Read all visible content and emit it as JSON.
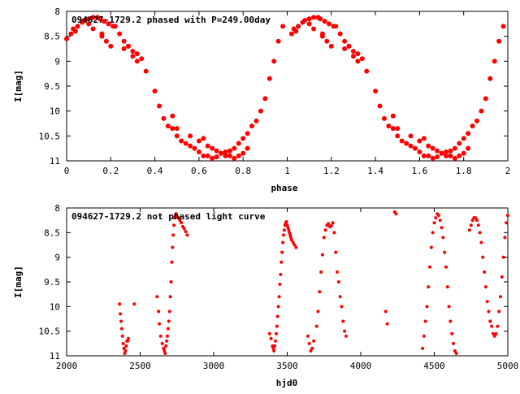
{
  "chart_data": [
    {
      "type": "scatter",
      "title": "094627-1729.2 phased with P=249.00day",
      "xlabel": "phase",
      "ylabel": "I[mag]",
      "xlim": [
        0,
        2
      ],
      "ylim": [
        11,
        8
      ],
      "y_reversed": true,
      "xticks": [
        0,
        0.2,
        0.4,
        0.6,
        0.8,
        1,
        1.2,
        1.4,
        1.6,
        1.8,
        2
      ],
      "xtick_labels": [
        "0",
        "0.2",
        "0.4",
        "0.6",
        "0.8",
        "1",
        "1.2",
        "1.4",
        "1.6",
        "1.8",
        "2"
      ],
      "yticks": [
        8,
        8.5,
        9,
        9.5,
        10,
        10.5,
        11
      ],
      "ytick_labels": [
        "8",
        "8.5",
        "9",
        "9.5",
        "10",
        "10.5",
        "11"
      ],
      "grid": false,
      "marker_color": "#ff0000",
      "series": [
        {
          "x": [
            0.0,
            0.02,
            0.03,
            0.05,
            0.07,
            0.08,
            0.1,
            0.12,
            0.14,
            0.15,
            0.17,
            0.19,
            0.21,
            0.24,
            0.26,
            0.28,
            0.3,
            0.32,
            0.34,
            0.36,
            0.4,
            0.42,
            0.44,
            0.46,
            0.48,
            0.5,
            0.52,
            0.54,
            0.56,
            0.58,
            0.6,
            0.62,
            0.64,
            0.66,
            0.68,
            0.7,
            0.72,
            0.74,
            0.76,
            0.78,
            0.8,
            0.82,
            0.84,
            0.86,
            0.88,
            0.9,
            0.92,
            0.94,
            0.96,
            0.98,
            0.12,
            0.16,
            0.2,
            0.26,
            0.3,
            0.62,
            0.66,
            0.7,
            0.74,
            0.78,
            0.8,
            0.82,
            0.04,
            0.1,
            0.28,
            0.48,
            0.5,
            0.56,
            0.6,
            0.64,
            0.68,
            0.72,
            0.76,
            0.16,
            0.18,
            0.22,
            0.32,
            0.02,
            0.03,
            0.05,
            0.07,
            0.08,
            0.1,
            0.12,
            0.14,
            0.15,
            0.17,
            0.19,
            0.21,
            0.24,
            0.26,
            0.28,
            0.3,
            0.32,
            0.34,
            0.36,
            0.4,
            0.42,
            0.44,
            0.46,
            0.48,
            0.5,
            0.52,
            0.54,
            0.56,
            0.58,
            0.6,
            0.62,
            0.64,
            0.66,
            0.68,
            0.7,
            0.72,
            0.74,
            0.76,
            0.78,
            0.8,
            0.82,
            0.84,
            0.86,
            0.88,
            0.9,
            0.92,
            0.94,
            0.96,
            0.98,
            0.12,
            0.16,
            0.2,
            0.26,
            0.3,
            0.62,
            0.66,
            0.7,
            0.74,
            0.78,
            0.8,
            0.82,
            0.04,
            0.1,
            0.28,
            0.48,
            0.5,
            0.56,
            0.6,
            0.64,
            0.68,
            0.72,
            0.76,
            0.16,
            0.18,
            0.22,
            0.32
          ],
          "y": [
            8.55,
            8.45,
            8.35,
            8.3,
            8.22,
            8.18,
            8.15,
            8.12,
            8.12,
            8.15,
            8.2,
            8.25,
            8.3,
            8.45,
            8.6,
            8.7,
            8.8,
            8.85,
            8.95,
            9.2,
            9.6,
            9.9,
            10.15,
            10.3,
            10.35,
            10.5,
            10.6,
            10.65,
            10.7,
            10.75,
            10.82,
            10.9,
            10.9,
            10.95,
            10.92,
            10.85,
            10.82,
            10.8,
            10.75,
            10.65,
            10.55,
            10.45,
            10.3,
            10.2,
            10.0,
            9.75,
            9.35,
            9.0,
            8.6,
            8.3,
            8.35,
            8.5,
            8.7,
            8.75,
            8.9,
            10.55,
            10.75,
            10.85,
            10.9,
            10.9,
            10.85,
            10.75,
            8.4,
            8.25,
            8.7,
            10.1,
            10.35,
            10.5,
            10.6,
            10.7,
            10.8,
            10.9,
            10.95,
            8.45,
            8.6,
            8.3,
            9.0,
            8.45,
            8.35,
            8.3,
            8.22,
            8.18,
            8.15,
            8.12,
            8.12,
            8.15,
            8.2,
            8.25,
            8.3,
            8.45,
            8.6,
            8.7,
            8.8,
            8.85,
            8.95,
            9.2,
            9.6,
            9.9,
            10.15,
            10.3,
            10.35,
            10.5,
            10.6,
            10.65,
            10.7,
            10.75,
            10.82,
            10.9,
            10.9,
            10.95,
            10.92,
            10.85,
            10.82,
            10.8,
            10.75,
            10.65,
            10.55,
            10.45,
            10.3,
            10.2,
            10.0,
            9.75,
            9.35,
            9.0,
            8.6,
            8.3,
            8.35,
            8.5,
            8.7,
            8.75,
            8.9,
            10.55,
            10.75,
            10.85,
            10.9,
            10.9,
            10.85,
            10.75,
            8.4,
            8.25,
            8.7,
            10.1,
            10.35,
            10.5,
            10.6,
            10.7,
            10.8,
            10.9,
            10.95,
            8.45,
            8.6,
            8.3,
            9.0
          ],
          "phase_shift_second_half": [
            false,
            false,
            false,
            false,
            false,
            false,
            false,
            false,
            false,
            false,
            false,
            false,
            false,
            false,
            false,
            false,
            false,
            false,
            false,
            false,
            false,
            false,
            false,
            false,
            false,
            false,
            false,
            false,
            false,
            false,
            false,
            false,
            false,
            false,
            false,
            false,
            false,
            false,
            false,
            false,
            false,
            false,
            false,
            false,
            false,
            false,
            false,
            false,
            false,
            false,
            false,
            false,
            false,
            false,
            false,
            false,
            false,
            false,
            false,
            false,
            false,
            false,
            false,
            false,
            false,
            false,
            false,
            false,
            false,
            false,
            false,
            false,
            false,
            false,
            false,
            false,
            false,
            true,
            true,
            true,
            true,
            true,
            true,
            true,
            true,
            true,
            true,
            true,
            true,
            true,
            true,
            true,
            true,
            true,
            true,
            true,
            true,
            true,
            true,
            true,
            true,
            true,
            true,
            true,
            true,
            true,
            true,
            true,
            true,
            true,
            true,
            true,
            true,
            true,
            true,
            true,
            true,
            true,
            true,
            true,
            true,
            true,
            true,
            true,
            true,
            true,
            true,
            true,
            true,
            true,
            true,
            true,
            true,
            true,
            true,
            true,
            true,
            true,
            true,
            true,
            true,
            true,
            true,
            true,
            true,
            true,
            true,
            true,
            true,
            true,
            true,
            true,
            true
          ]
        }
      ]
    },
    {
      "type": "scatter",
      "title": "094627-1729.2 not phased light curve",
      "xlabel": "hjd0",
      "ylabel": "I[mag]",
      "xlim": [
        2000,
        5000
      ],
      "ylim": [
        11,
        8
      ],
      "y_reversed": true,
      "xticks": [
        2000,
        2500,
        3000,
        3500,
        4000,
        4500,
        5000
      ],
      "xtick_labels": [
        "2000",
        "2500",
        "3000",
        "3500",
        "4000",
        "4500",
        "5000"
      ],
      "yticks": [
        8,
        8.5,
        9,
        9.5,
        10,
        10.5,
        11
      ],
      "ytick_labels": [
        "8",
        "8.5",
        "9",
        "9.5",
        "10",
        "10.5",
        "11"
      ],
      "grid": false,
      "marker_color": "#ff0000",
      "series": [
        {
          "x": [
            2360,
            2365,
            2370,
            2375,
            2380,
            2385,
            2390,
            2395,
            2400,
            2405,
            2410,
            2415,
            2420,
            2460,
            2615,
            2625,
            2630,
            2640,
            2650,
            2660,
            2665,
            2670,
            2675,
            2680,
            2685,
            2690,
            2695,
            2700,
            2705,
            2710,
            2715,
            2720,
            2725,
            2730,
            2735,
            2740,
            2745,
            2750,
            2760,
            2770,
            2780,
            2790,
            2800,
            2810,
            2820,
            3380,
            3390,
            3400,
            3405,
            3410,
            3415,
            3420,
            3425,
            3430,
            3435,
            3440,
            3445,
            3450,
            3455,
            3460,
            3465,
            3470,
            3475,
            3480,
            3485,
            3490,
            3495,
            3500,
            3505,
            3510,
            3515,
            3520,
            3525,
            3530,
            3540,
            3550,
            3560,
            3640,
            3650,
            3660,
            3670,
            3680,
            3700,
            3710,
            3720,
            3730,
            3740,
            3750,
            3760,
            3770,
            3780,
            3790,
            3800,
            3810,
            3820,
            3830,
            3840,
            3850,
            3860,
            3870,
            3880,
            3890,
            3900,
            4170,
            4180,
            4230,
            4240,
            4420,
            4430,
            4440,
            4450,
            4460,
            4470,
            4480,
            4490,
            4500,
            4510,
            4520,
            4530,
            4540,
            4550,
            4560,
            4570,
            4580,
            4590,
            4600,
            4610,
            4620,
            4630,
            4640,
            4650,
            4740,
            4750,
            4760,
            4770,
            4780,
            4790,
            4800,
            4810,
            4820,
            4830,
            4840,
            4850,
            4860,
            4870,
            4880,
            4890,
            4900,
            4910,
            4920,
            4930,
            4940,
            4950,
            4960,
            4970,
            4980,
            4990,
            5000
          ],
          "y": [
            9.95,
            10.15,
            10.3,
            10.45,
            10.6,
            10.75,
            10.85,
            10.95,
            10.9,
            10.8,
            10.7,
            10.7,
            10.65,
            9.95,
            9.8,
            10.1,
            10.35,
            10.6,
            10.75,
            10.85,
            10.9,
            10.95,
            10.8,
            10.7,
            10.6,
            10.45,
            10.3,
            10.1,
            9.8,
            9.5,
            9.1,
            8.8,
            8.55,
            8.35,
            8.2,
            8.15,
            8.12,
            8.18,
            8.2,
            8.25,
            8.3,
            8.38,
            8.42,
            8.48,
            8.55,
            10.55,
            10.65,
            10.8,
            10.85,
            10.9,
            10.8,
            10.7,
            10.55,
            10.4,
            10.2,
            10.0,
            9.8,
            9.55,
            9.35,
            9.1,
            8.9,
            8.7,
            8.55,
            8.45,
            8.35,
            8.3,
            8.28,
            8.35,
            8.4,
            8.45,
            8.5,
            8.55,
            8.6,
            8.65,
            8.7,
            8.75,
            8.8,
            10.6,
            10.75,
            10.9,
            10.85,
            10.7,
            10.4,
            10.1,
            9.7,
            9.3,
            8.95,
            8.6,
            8.45,
            8.35,
            8.32,
            8.38,
            8.36,
            8.3,
            8.5,
            8.9,
            9.3,
            9.5,
            9.8,
            10.0,
            10.3,
            10.5,
            10.6,
            10.1,
            10.35,
            8.08,
            8.12,
            10.85,
            10.6,
            10.3,
            10.0,
            9.6,
            9.2,
            8.8,
            8.5,
            8.3,
            8.2,
            8.12,
            8.15,
            8.25,
            8.4,
            8.6,
            8.9,
            9.2,
            9.6,
            10.0,
            10.3,
            10.55,
            10.75,
            10.9,
            10.95,
            8.45,
            8.35,
            8.25,
            8.2,
            8.2,
            8.25,
            8.35,
            8.5,
            8.7,
            9.0,
            9.3,
            9.6,
            9.9,
            10.1,
            10.3,
            10.4,
            10.55,
            10.6,
            10.55,
            10.4,
            10.1,
            9.8,
            9.4,
            9.0,
            8.6,
            8.3,
            8.15
          ]
        }
      ]
    }
  ]
}
